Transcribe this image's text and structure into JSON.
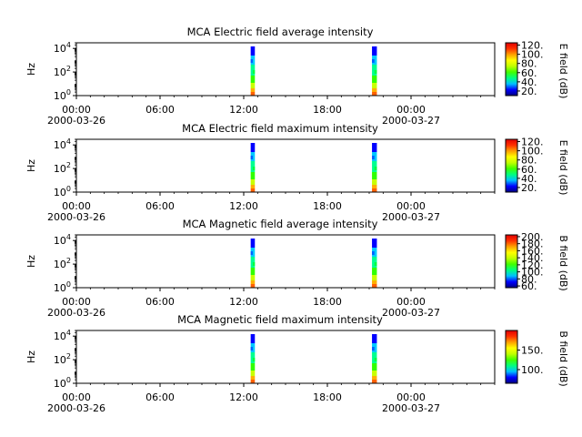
{
  "chart_data": [
    {
      "type": "heatmap",
      "title": "MCA  Electric field average intensity",
      "ylabel": "Hz",
      "ylog": true,
      "ylim": [
        1,
        30000
      ],
      "yticks": [
        {
          "value": 1,
          "base": "10",
          "exp": "0"
        },
        {
          "value": 100,
          "base": "10",
          "exp": "2"
        },
        {
          "value": 10000,
          "base": "10",
          "exp": "4"
        }
      ],
      "xlim": [
        0,
        30
      ],
      "xticks": [
        {
          "value": 0,
          "label": "00:00",
          "date": "2000-03-26"
        },
        {
          "value": 6,
          "label": "06:00",
          "date": ""
        },
        {
          "value": 12,
          "label": "12:00",
          "date": ""
        },
        {
          "value": 18,
          "label": "18:00",
          "date": ""
        },
        {
          "value": 24,
          "label": "00:00",
          "date": "2000-03-27"
        }
      ],
      "colorbar": {
        "label": "E field (dB)",
        "min": 10,
        "max": 125,
        "ticks": [
          {
            "value": 20,
            "label": "20."
          },
          {
            "value": 40,
            "label": "40."
          },
          {
            "value": 60,
            "label": "60."
          },
          {
            "value": 80,
            "label": "80."
          },
          {
            "value": 100,
            "label": "100."
          },
          {
            "value": 120,
            "label": "120."
          }
        ]
      },
      "colormap": [
        "#000080",
        "#0000ff",
        "#00bfff",
        "#00ff80",
        "#40ff00",
        "#c0ff00",
        "#ffff00",
        "#ffa000",
        "#ff3000",
        "#e00000"
      ],
      "data_blocks": [
        {
          "x_start": 12.5,
          "x_end": 12.8
        },
        {
          "x_start": 21.2,
          "x_end": 21.55
        }
      ]
    },
    {
      "type": "heatmap",
      "title": "MCA  Electric field maximum intensity",
      "ylabel": "Hz",
      "ylog": true,
      "ylim": [
        1,
        30000
      ],
      "yticks": [
        {
          "value": 1,
          "base": "10",
          "exp": "0"
        },
        {
          "value": 100,
          "base": "10",
          "exp": "2"
        },
        {
          "value": 10000,
          "base": "10",
          "exp": "4"
        }
      ],
      "xlim": [
        0,
        30
      ],
      "xticks": [
        {
          "value": 0,
          "label": "00:00",
          "date": "2000-03-26"
        },
        {
          "value": 6,
          "label": "06:00",
          "date": ""
        },
        {
          "value": 12,
          "label": "12:00",
          "date": ""
        },
        {
          "value": 18,
          "label": "18:00",
          "date": ""
        },
        {
          "value": 24,
          "label": "00:00",
          "date": "2000-03-27"
        }
      ],
      "colorbar": {
        "label": "E field (dB)",
        "min": 10,
        "max": 125,
        "ticks": [
          {
            "value": 20,
            "label": "20."
          },
          {
            "value": 40,
            "label": "40."
          },
          {
            "value": 60,
            "label": "60."
          },
          {
            "value": 80,
            "label": "80."
          },
          {
            "value": 100,
            "label": "100."
          },
          {
            "value": 120,
            "label": "120."
          }
        ]
      },
      "colormap": [
        "#000080",
        "#0000ff",
        "#00bfff",
        "#00ff80",
        "#40ff00",
        "#c0ff00",
        "#ffff00",
        "#ffa000",
        "#ff3000",
        "#e00000"
      ],
      "data_blocks": [
        {
          "x_start": 12.5,
          "x_end": 12.8
        },
        {
          "x_start": 21.2,
          "x_end": 21.55
        }
      ]
    },
    {
      "type": "heatmap",
      "title": "MCA  Magnetic field average intensity",
      "ylabel": "Hz",
      "ylog": true,
      "ylim": [
        1,
        30000
      ],
      "yticks": [
        {
          "value": 1,
          "base": "10",
          "exp": "0"
        },
        {
          "value": 100,
          "base": "10",
          "exp": "2"
        },
        {
          "value": 10000,
          "base": "10",
          "exp": "4"
        }
      ],
      "xlim": [
        0,
        30
      ],
      "xticks": [
        {
          "value": 0,
          "label": "00:00",
          "date": "2000-03-26"
        },
        {
          "value": 6,
          "label": "06:00",
          "date": ""
        },
        {
          "value": 12,
          "label": "12:00",
          "date": ""
        },
        {
          "value": 18,
          "label": "18:00",
          "date": ""
        },
        {
          "value": 24,
          "label": "00:00",
          "date": "2000-03-27"
        }
      ],
      "colorbar": {
        "label": "B field (dB)",
        "min": 55,
        "max": 205,
        "ticks": [
          {
            "value": 60,
            "label": "60."
          },
          {
            "value": 80,
            "label": "80."
          },
          {
            "value": 100,
            "label": "100."
          },
          {
            "value": 120,
            "label": "120."
          },
          {
            "value": 140,
            "label": "140."
          },
          {
            "value": 160,
            "label": "160."
          },
          {
            "value": 180,
            "label": "180."
          },
          {
            "value": 200,
            "label": "200."
          }
        ]
      },
      "colormap": [
        "#000080",
        "#0000ff",
        "#00bfff",
        "#00ff80",
        "#40ff00",
        "#c0ff00",
        "#ffff00",
        "#ffa000",
        "#ff3000",
        "#e00000"
      ],
      "data_blocks": [
        {
          "x_start": 12.5,
          "x_end": 12.8
        },
        {
          "x_start": 21.2,
          "x_end": 21.55
        }
      ]
    },
    {
      "type": "heatmap",
      "title": "MCA  Magnetic field maximum intensity",
      "ylabel": "Hz",
      "ylog": true,
      "ylim": [
        1,
        30000
      ],
      "yticks": [
        {
          "value": 1,
          "base": "10",
          "exp": "0"
        },
        {
          "value": 100,
          "base": "10",
          "exp": "2"
        },
        {
          "value": 10000,
          "base": "10",
          "exp": "4"
        }
      ],
      "xlim": [
        0,
        30
      ],
      "xticks": [
        {
          "value": 0,
          "label": "00:00",
          "date": "2000-03-26"
        },
        {
          "value": 6,
          "label": "06:00",
          "date": ""
        },
        {
          "value": 12,
          "label": "12:00",
          "date": ""
        },
        {
          "value": 18,
          "label": "18:00",
          "date": ""
        },
        {
          "value": 24,
          "label": "00:00",
          "date": "2000-03-27"
        }
      ],
      "colorbar": {
        "label": "B field (dB)",
        "min": 65,
        "max": 200,
        "ticks": [
          {
            "value": 100,
            "label": "100."
          },
          {
            "value": 150,
            "label": "150."
          }
        ]
      },
      "colormap": [
        "#000080",
        "#0000ff",
        "#00bfff",
        "#00ff80",
        "#40ff00",
        "#c0ff00",
        "#ffff00",
        "#ffa000",
        "#ff3000",
        "#e00000"
      ],
      "data_blocks": [
        {
          "x_start": 12.5,
          "x_end": 12.8
        },
        {
          "x_start": 21.2,
          "x_end": 21.55
        }
      ]
    }
  ]
}
